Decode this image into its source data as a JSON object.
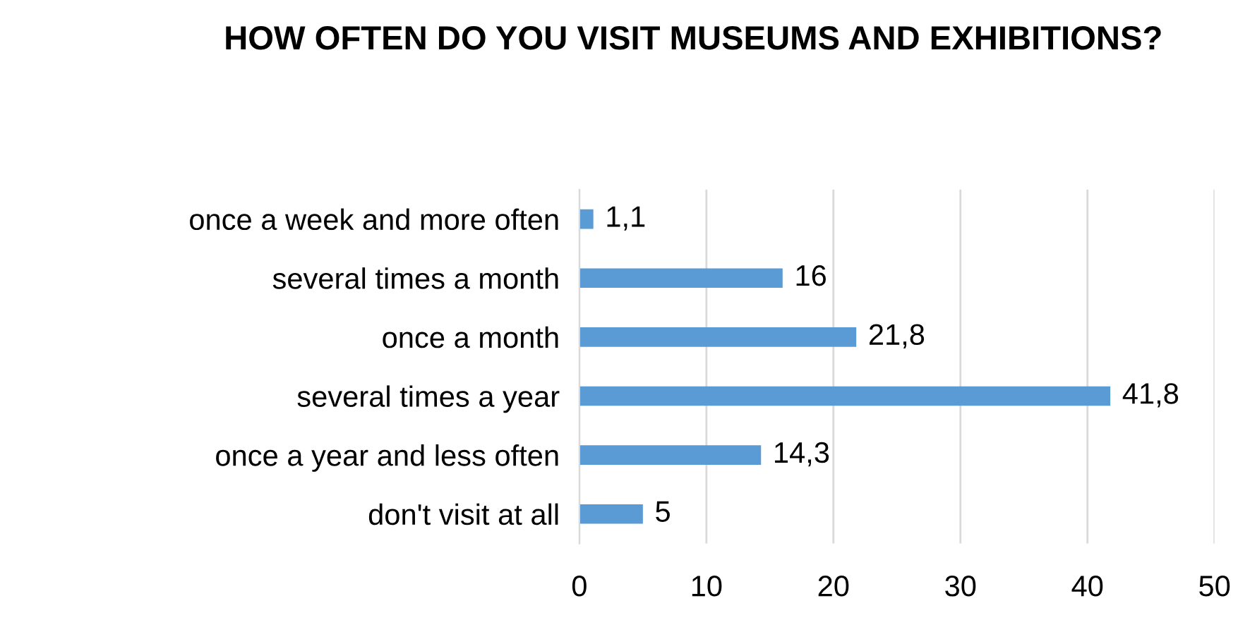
{
  "chart_data": {
    "type": "bar",
    "orientation": "horizontal",
    "title": "HOW OFTEN DO YOU VISIT MUSEUMS AND EXHIBITIONS?",
    "categories": [
      "once a week and more often",
      "several times a month",
      "once a month",
      "several times a year",
      "once a year and less often",
      "don't visit at all"
    ],
    "values": [
      1.1,
      16,
      21.8,
      41.8,
      14.3,
      5
    ],
    "value_labels": [
      "1,1",
      "16",
      "21,8",
      "41,8",
      "14,3",
      "5"
    ],
    "color": "#5b9bd5",
    "xlim": [
      0,
      50
    ],
    "xticks": [
      0,
      10,
      20,
      30,
      40,
      50
    ],
    "grid": "x",
    "legend": false
  }
}
